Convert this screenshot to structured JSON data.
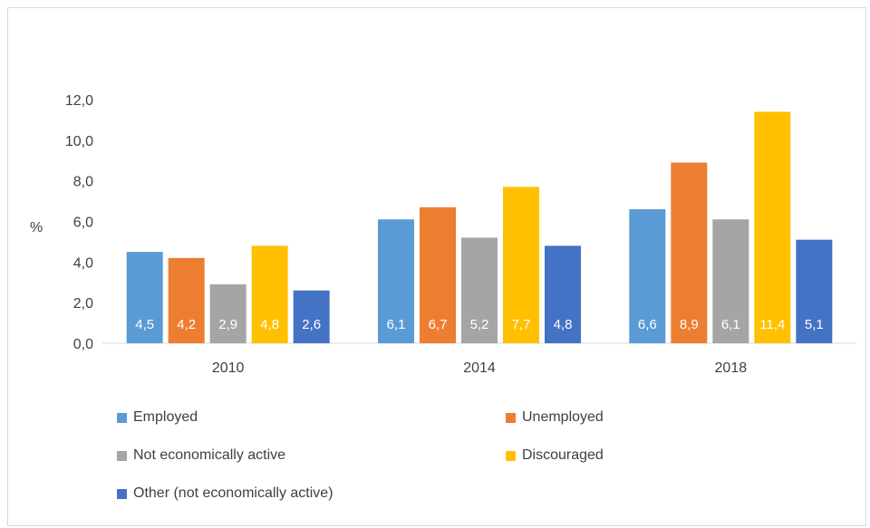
{
  "chart_data": {
    "type": "bar",
    "categories": [
      "2010",
      "2014",
      "2018"
    ],
    "ylabel": "%",
    "ylim": [
      0,
      12
    ],
    "yticks": [
      "0,0",
      "2,0",
      "4,0",
      "6,0",
      "8,0",
      "10,0",
      "12,0"
    ],
    "grid": false,
    "legend_position": "bottom",
    "series": [
      {
        "name": "Employed",
        "color": "#5b9bd5",
        "values": [
          4.5,
          6.1,
          6.6
        ],
        "labels": [
          "4,5",
          "6,1",
          "6,6"
        ]
      },
      {
        "name": "Unemployed",
        "color": "#ed7d31",
        "values": [
          4.2,
          6.7,
          8.9
        ],
        "labels": [
          "4,2",
          "6,7",
          "8,9"
        ]
      },
      {
        "name": "Not economically active",
        "color": "#a5a5a5",
        "values": [
          2.9,
          5.2,
          6.1
        ],
        "labels": [
          "2,9",
          "5,2",
          "6,1"
        ]
      },
      {
        "name": "Discouraged",
        "color": "#ffc000",
        "values": [
          4.8,
          7.7,
          11.4
        ],
        "labels": [
          "4,8",
          "7,7",
          "11,4"
        ]
      },
      {
        "name": "Other (not economically active)",
        "color": "#4472c4",
        "values": [
          2.6,
          4.8,
          5.1
        ],
        "labels": [
          "2,6",
          "4,8",
          "5,1"
        ]
      }
    ]
  }
}
